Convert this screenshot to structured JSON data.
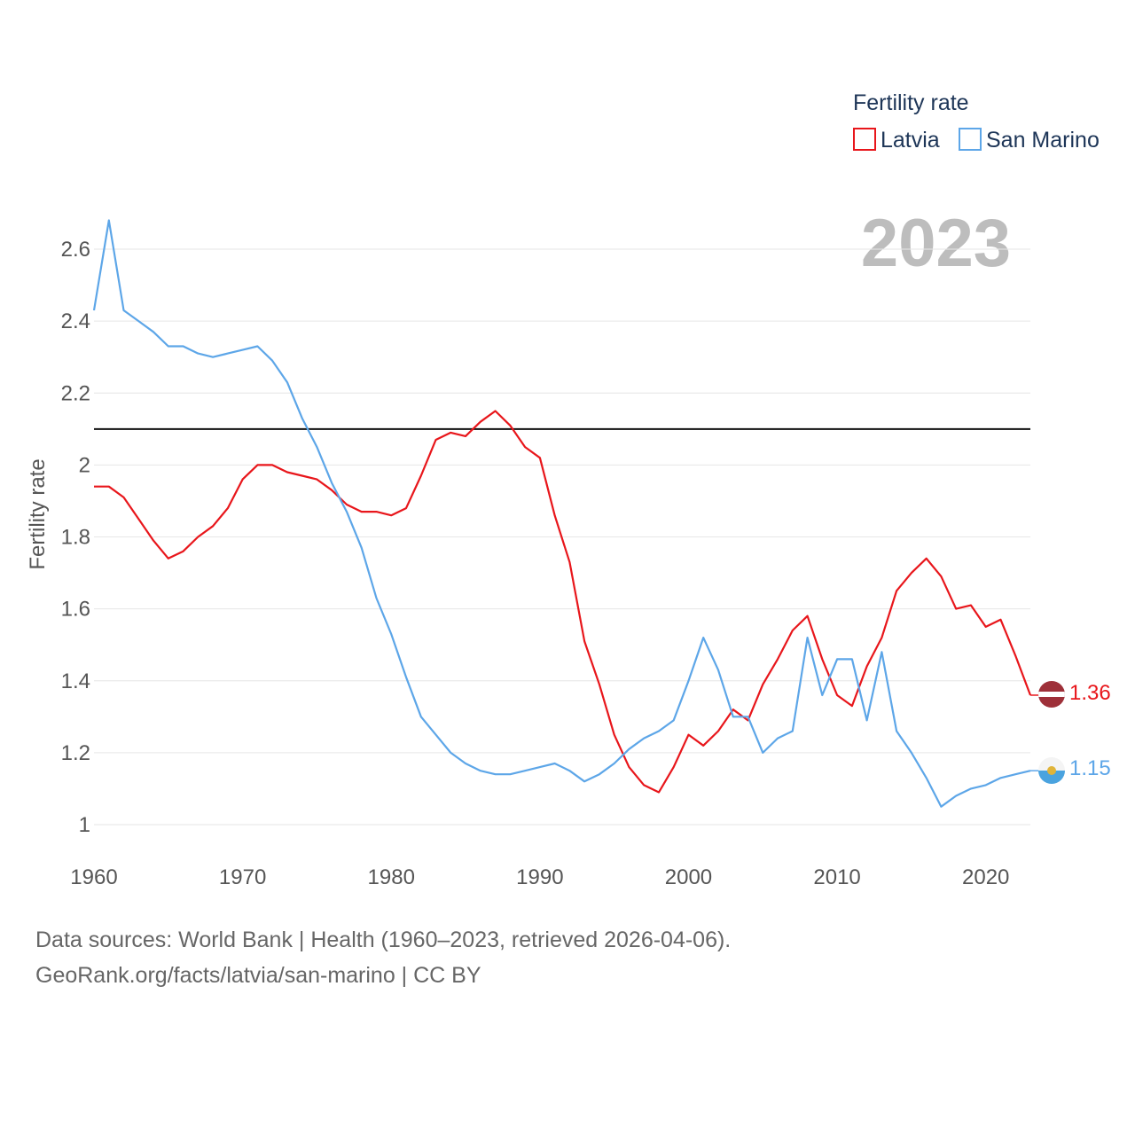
{
  "chart_data": {
    "type": "line",
    "legend_title": "Fertility rate",
    "ylabel": "Fertility rate",
    "year_label": "2023",
    "xlim": [
      1960,
      2023
    ],
    "ylim": [
      0.95,
      2.7
    ],
    "x_ticks": [
      1960,
      1970,
      1980,
      1990,
      2000,
      2010,
      2020
    ],
    "y_ticks": [
      1,
      1.2,
      1.4,
      1.6,
      1.8,
      2,
      2.2,
      2.4,
      2.6
    ],
    "reference_line": 2.1,
    "x": [
      1960,
      1961,
      1962,
      1963,
      1964,
      1965,
      1966,
      1967,
      1968,
      1969,
      1970,
      1971,
      1972,
      1973,
      1974,
      1975,
      1976,
      1977,
      1978,
      1979,
      1980,
      1981,
      1982,
      1983,
      1984,
      1985,
      1986,
      1987,
      1988,
      1989,
      1990,
      1991,
      1992,
      1993,
      1994,
      1995,
      1996,
      1997,
      1998,
      1999,
      2000,
      2001,
      2002,
      2003,
      2004,
      2005,
      2006,
      2007,
      2008,
      2009,
      2010,
      2011,
      2012,
      2013,
      2014,
      2015,
      2016,
      2017,
      2018,
      2019,
      2020,
      2021,
      2022,
      2023
    ],
    "series": [
      {
        "name": "Latvia",
        "color": "#e8161b",
        "end_value": "1.36",
        "values": [
          1.94,
          1.94,
          1.91,
          1.85,
          1.79,
          1.74,
          1.76,
          1.8,
          1.83,
          1.88,
          1.96,
          2.0,
          2.0,
          1.98,
          1.97,
          1.96,
          1.93,
          1.89,
          1.87,
          1.87,
          1.86,
          1.88,
          1.97,
          2.07,
          2.09,
          2.08,
          2.12,
          2.15,
          2.11,
          2.05,
          2.02,
          1.86,
          1.73,
          1.51,
          1.39,
          1.25,
          1.16,
          1.11,
          1.09,
          1.16,
          1.25,
          1.22,
          1.26,
          1.32,
          1.29,
          1.39,
          1.46,
          1.54,
          1.58,
          1.46,
          1.36,
          1.33,
          1.44,
          1.52,
          1.65,
          1.7,
          1.74,
          1.69,
          1.6,
          1.61,
          1.55,
          1.57,
          1.47,
          1.36
        ]
      },
      {
        "name": "San Marino",
        "color": "#5da6e8",
        "end_value": "1.15",
        "values": [
          2.43,
          2.68,
          2.43,
          2.4,
          2.37,
          2.33,
          2.33,
          2.31,
          2.3,
          2.31,
          2.32,
          2.33,
          2.29,
          2.23,
          2.13,
          2.05,
          1.95,
          1.87,
          1.77,
          1.63,
          1.53,
          1.41,
          1.3,
          1.25,
          1.2,
          1.17,
          1.15,
          1.14,
          1.14,
          1.15,
          1.16,
          1.17,
          1.15,
          1.12,
          1.14,
          1.17,
          1.21,
          1.24,
          1.26,
          1.29,
          1.4,
          1.52,
          1.43,
          1.3,
          1.3,
          1.2,
          1.24,
          1.26,
          1.52,
          1.36,
          1.46,
          1.46,
          1.29,
          1.48,
          1.26,
          1.2,
          1.13,
          1.05,
          1.08,
          1.1,
          1.11,
          1.13,
          1.14,
          1.15
        ]
      }
    ]
  },
  "footer": {
    "source_line": "Data sources: World Bank | Health (1960–2023, retrieved 2026-04-06).",
    "credit_line": "GeoRank.org/facts/latvia/san-marino | CC BY"
  }
}
